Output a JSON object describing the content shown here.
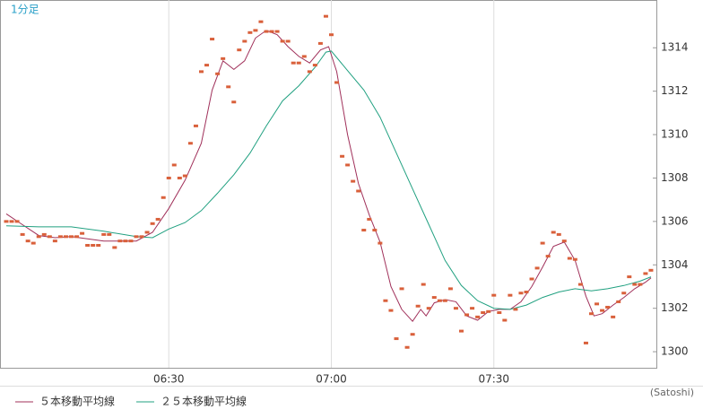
{
  "chart_data": {
    "type": "line",
    "title": "1分足",
    "credit": "(Satoshi)",
    "xlim": [
      360,
      480
    ],
    "ylim": [
      1299.26,
      1316.2
    ],
    "xticks": [
      {
        "value": 390,
        "label": "06:30"
      },
      {
        "value": 420,
        "label": "07:00"
      },
      {
        "value": 450,
        "label": "07:30"
      }
    ],
    "yticks": [
      1300,
      1302,
      1304,
      1306,
      1308,
      1310,
      1312,
      1314
    ],
    "points": {
      "color": "#d9603b",
      "x": [
        360,
        361,
        362,
        363,
        364,
        365,
        366,
        367,
        368,
        369,
        370,
        371,
        372,
        373,
        374,
        375,
        376,
        377,
        378,
        379,
        380,
        381,
        382,
        383,
        384,
        385,
        386,
        387,
        388,
        389,
        390,
        391,
        392,
        393,
        394,
        395,
        396,
        397,
        398,
        399,
        400,
        401,
        402,
        403,
        404,
        405,
        406,
        407,
        408,
        409,
        410,
        411,
        412,
        413,
        414,
        415,
        416,
        417,
        418,
        419,
        420,
        421,
        422,
        423,
        424,
        425,
        426,
        427,
        428,
        429,
        430,
        431,
        432,
        433,
        434,
        435,
        436,
        437,
        438,
        439,
        440,
        441,
        442,
        443,
        444,
        445,
        446,
        447,
        448,
        449,
        450,
        451,
        452,
        453,
        454,
        455,
        456,
        457,
        458,
        459,
        460,
        461,
        462,
        463,
        464,
        465,
        466,
        467,
        468,
        469,
        470,
        471,
        472,
        473,
        474,
        475,
        476,
        477,
        478,
        479
      ],
      "values": [
        1306.0,
        1306.0,
        1306.0,
        1305.4,
        1305.1,
        1305.0,
        1305.3,
        1305.4,
        1305.3,
        1305.1,
        1305.3,
        1305.3,
        1305.3,
        1305.3,
        1305.45,
        1304.9,
        1304.9,
        1304.9,
        1305.4,
        1305.4,
        1304.8,
        1305.1,
        1305.1,
        1305.1,
        1305.3,
        1305.3,
        1305.5,
        1305.9,
        1306.1,
        1307.1,
        1308.0,
        1308.6,
        1308.0,
        1308.1,
        1309.6,
        1310.4,
        1312.9,
        1313.2,
        1314.4,
        1312.8,
        1313.5,
        1312.2,
        1311.5,
        1313.9,
        1314.3,
        1314.7,
        1314.8,
        1315.2,
        1314.75,
        1314.75,
        1314.75,
        1314.3,
        1314.3,
        1313.3,
        1313.3,
        1313.6,
        1312.9,
        1313.2,
        1314.2,
        1315.45,
        1314.6,
        1312.4,
        1309.0,
        1308.6,
        1307.85,
        1307.4,
        1305.6,
        1306.1,
        1305.6,
        1305.0,
        1302.35,
        1301.9,
        1300.6,
        1302.9,
        1300.2,
        1300.8,
        1302.1,
        1303.1,
        1302.0,
        1302.5,
        1302.35,
        1302.35,
        1302.9,
        1302.0,
        1300.95,
        1301.7,
        1302.0,
        1301.6,
        1301.8,
        1301.85,
        1302.6,
        1301.8,
        1301.45,
        1302.6,
        1301.95,
        1302.7,
        1302.75,
        1303.35,
        1303.85,
        1305.0,
        1304.4,
        1305.5,
        1305.4,
        1305.1,
        1304.3,
        1304.25,
        1303.1,
        1300.4,
        1301.75,
        1302.2,
        1301.9,
        1302.05,
        1301.6,
        1302.3,
        1302.7,
        1303.45,
        1303.1,
        1303.1,
        1303.6,
        1303.75
      ]
    },
    "series": [
      {
        "name": "５本移動平均線",
        "color": "#a0305a",
        "x": [
          360,
          363,
          366,
          369,
          372,
          375,
          378,
          381,
          384,
          387,
          390,
          393,
          396,
          398,
          400,
          402,
          404,
          406,
          408,
          410,
          412,
          414,
          416,
          418,
          419.5,
          421,
          423,
          425,
          427,
          429,
          431,
          433,
          435,
          436.5,
          437.5,
          439,
          441,
          443,
          445,
          447,
          449,
          451,
          453,
          455,
          457,
          459,
          461,
          463,
          465,
          467,
          468.5,
          470,
          472,
          474,
          476,
          478,
          479
        ],
        "values": [
          1306.35,
          1305.85,
          1305.35,
          1305.25,
          1305.3,
          1305.2,
          1305.1,
          1305.1,
          1305.1,
          1305.5,
          1306.6,
          1307.9,
          1309.6,
          1312.05,
          1313.4,
          1313.0,
          1313.4,
          1314.45,
          1314.8,
          1314.6,
          1314.05,
          1313.6,
          1313.3,
          1313.9,
          1314.05,
          1312.9,
          1310.0,
          1307.75,
          1306.3,
          1305.05,
          1303.0,
          1301.95,
          1301.4,
          1301.95,
          1301.65,
          1302.25,
          1302.4,
          1302.3,
          1301.65,
          1301.45,
          1301.85,
          1301.95,
          1301.95,
          1302.3,
          1303.0,
          1303.9,
          1304.85,
          1305.05,
          1304.2,
          1302.55,
          1301.65,
          1301.75,
          1302.15,
          1302.5,
          1302.9,
          1303.2,
          1303.4
        ]
      },
      {
        "name": "２５本移動平均線",
        "color": "#20a080",
        "x": [
          360,
          366,
          372,
          378,
          384,
          387,
          390,
          393,
          396,
          399,
          402,
          405,
          408,
          411,
          414,
          417,
          419,
          420,
          423,
          426,
          429,
          432,
          435,
          438,
          441,
          444,
          447,
          450,
          453,
          456,
          459,
          462,
          465,
          468,
          471,
          474,
          477,
          479
        ],
        "values": [
          1305.8,
          1305.75,
          1305.75,
          1305.55,
          1305.3,
          1305.25,
          1305.65,
          1305.95,
          1306.5,
          1307.3,
          1308.15,
          1309.15,
          1310.4,
          1311.55,
          1312.25,
          1313.1,
          1313.8,
          1313.85,
          1312.95,
          1312.05,
          1310.8,
          1309.15,
          1307.5,
          1305.85,
          1304.2,
          1303.05,
          1302.35,
          1302.0,
          1301.95,
          1302.15,
          1302.5,
          1302.75,
          1302.9,
          1302.8,
          1302.9,
          1303.05,
          1303.25,
          1303.45
        ]
      }
    ]
  }
}
